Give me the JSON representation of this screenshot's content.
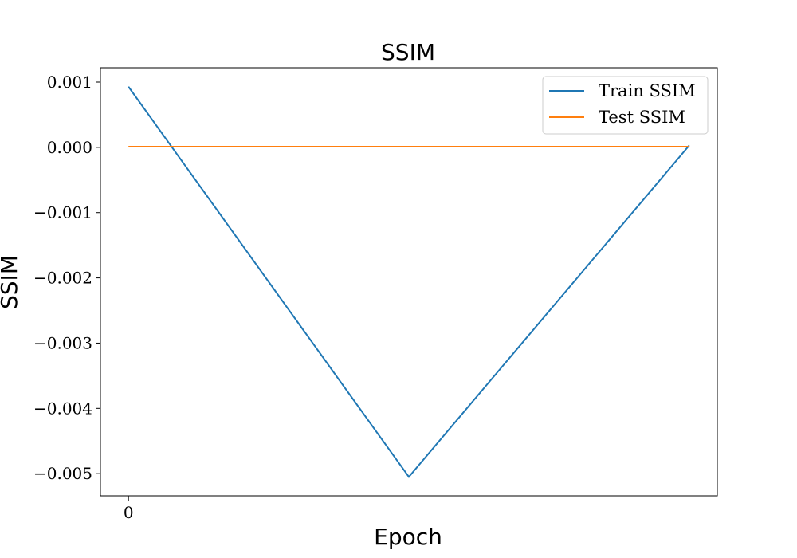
{
  "chart_data": {
    "type": "line",
    "title": "SSIM",
    "xlabel": "Epoch",
    "ylabel": "SSIM",
    "x": [
      0,
      1,
      2
    ],
    "x_ticks": [
      0
    ],
    "x_tick_labels": [
      "0"
    ],
    "xlim": [
      -0.1,
      2.1
    ],
    "ylim": [
      -0.00534,
      0.00122
    ],
    "y_ticks": [
      0.001,
      0.0,
      -0.001,
      -0.002,
      -0.003,
      -0.004,
      -0.005
    ],
    "y_tick_labels": [
      "0.001",
      "0.000",
      "−0.001",
      "−0.002",
      "−0.003",
      "−0.004",
      "−0.005"
    ],
    "grid": false,
    "legend_position": "upper right",
    "series": [
      {
        "name": "Train SSIM",
        "color": "#1f77b4",
        "values": [
          0.00093,
          -0.00505,
          3e-05
        ]
      },
      {
        "name": "Test SSIM",
        "color": "#ff7f0e",
        "values": [
          1e-05,
          1e-05,
          1e-05
        ]
      }
    ]
  }
}
